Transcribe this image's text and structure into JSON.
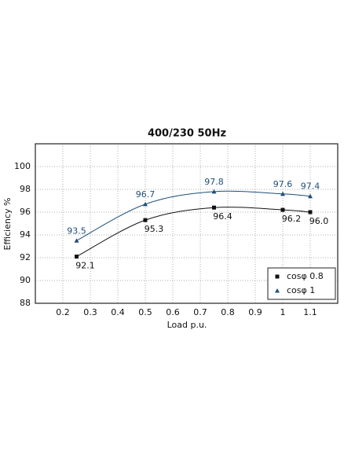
{
  "chart_data": {
    "type": "line",
    "title": "400/230 50Hz",
    "x_label": "Load p.u.",
    "y_label": "Efficiency %",
    "x": [
      0.25,
      0.5,
      0.75,
      1.0,
      1.1
    ],
    "series": [
      {
        "name": "cosφ 0.8",
        "color": "#111111",
        "marker": "square",
        "values": [
          92.1,
          95.3,
          96.4,
          96.2,
          96.0
        ],
        "value_labels": [
          "92.1",
          "95.3",
          "96.4",
          "96.2",
          "96.0"
        ]
      },
      {
        "name": "cosφ 1",
        "color": "#1f4e79",
        "marker": "triangle",
        "values": [
          93.5,
          96.7,
          97.8,
          97.6,
          97.4
        ],
        "value_labels": [
          "93.5",
          "96.7",
          "97.8",
          "97.6",
          "97.4"
        ]
      }
    ],
    "xlim": [
      0.1,
      1.2
    ],
    "xticks": [
      0.2,
      0.3,
      0.4,
      0.5,
      0.6,
      0.7,
      0.8,
      0.9,
      1.0,
      1.1
    ],
    "ylim": [
      88,
      102
    ],
    "yticks": [
      88,
      90,
      92,
      94,
      96,
      98,
      100
    ],
    "grid": true,
    "legend": "lower right"
  }
}
